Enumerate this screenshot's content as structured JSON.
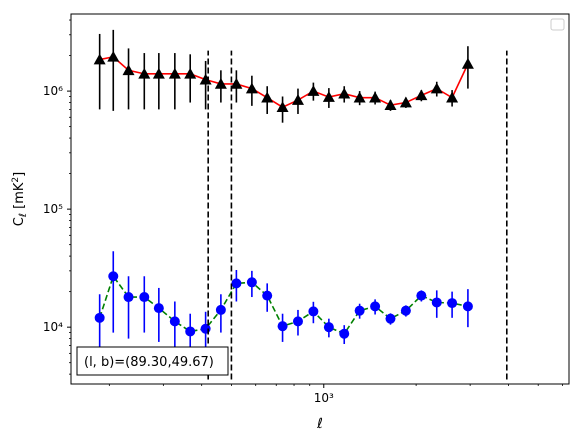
{
  "chart_data": {
    "type": "scatter",
    "xlabel": "ℓ",
    "ylabel": "C_ℓ [mK²]",
    "xscale": "log",
    "yscale": "log",
    "xlim": [
      150,
      6300
    ],
    "ylim": [
      3300,
      4500000
    ],
    "x_tick_labels": [
      {
        "value": 1000,
        "label": "10³"
      }
    ],
    "y_tick_labels": [
      {
        "value": 10000,
        "label": "10⁴"
      },
      {
        "value": 100000,
        "label": "10⁵"
      },
      {
        "value": 1000000,
        "label": "10⁶"
      }
    ],
    "legend": {
      "placement": "top-right",
      "entries": []
    },
    "annotation": "(l, b)=(89.30,49.67)",
    "vlines": [
      420,
      500,
      3950
    ],
    "vline_range": [
      3600,
      2200000
    ],
    "colors": {
      "upper_marker": "#000000",
      "upper_line": "#ff0000",
      "upper_error": "#000000",
      "lower_marker": "#0000ff",
      "lower_line": "#008000",
      "lower_error": "#0000ff",
      "vline": "#000000"
    },
    "series": [
      {
        "marker": "triangle",
        "line_style": "solid",
        "points": [
          {
            "x": 186,
            "y": 1850000,
            "lo": 700000,
            "hi": 3050000
          },
          {
            "x": 206,
            "y": 1950000,
            "lo": 680000,
            "hi": 3300000
          },
          {
            "x": 231,
            "y": 1500000,
            "lo": 700000,
            "hi": 2300000
          },
          {
            "x": 260,
            "y": 1400000,
            "lo": 700000,
            "hi": 2100000
          },
          {
            "x": 290,
            "y": 1400000,
            "lo": 700000,
            "hi": 2100000
          },
          {
            "x": 327,
            "y": 1400000,
            "lo": 700000,
            "hi": 2100000
          },
          {
            "x": 367,
            "y": 1400000,
            "lo": 800000,
            "hi": 2050000
          },
          {
            "x": 412,
            "y": 1250000,
            "lo": 700000,
            "hi": 1800000
          },
          {
            "x": 462,
            "y": 1150000,
            "lo": 800000,
            "hi": 1500000
          },
          {
            "x": 519,
            "y": 1150000,
            "lo": 800000,
            "hi": 1500000
          },
          {
            "x": 583,
            "y": 1050000,
            "lo": 750000,
            "hi": 1350000
          },
          {
            "x": 654,
            "y": 880000,
            "lo": 640000,
            "hi": 1100000
          },
          {
            "x": 734,
            "y": 730000,
            "lo": 540000,
            "hi": 900000
          },
          {
            "x": 824,
            "y": 840000,
            "lo": 640000,
            "hi": 1050000
          },
          {
            "x": 925,
            "y": 1000000,
            "lo": 830000,
            "hi": 1180000
          },
          {
            "x": 1039,
            "y": 890000,
            "lo": 720000,
            "hi": 1060000
          },
          {
            "x": 1166,
            "y": 950000,
            "lo": 800000,
            "hi": 1100000
          },
          {
            "x": 1309,
            "y": 880000,
            "lo": 760000,
            "hi": 1000000
          },
          {
            "x": 1470,
            "y": 880000,
            "lo": 770000,
            "hi": 990000
          },
          {
            "x": 1650,
            "y": 760000,
            "lo": 680000,
            "hi": 840000
          },
          {
            "x": 1852,
            "y": 800000,
            "lo": 720000,
            "hi": 880000
          },
          {
            "x": 2080,
            "y": 920000,
            "lo": 820000,
            "hi": 1020000
          },
          {
            "x": 2335,
            "y": 1050000,
            "lo": 900000,
            "hi": 1200000
          },
          {
            "x": 2620,
            "y": 880000,
            "lo": 740000,
            "hi": 1020000
          },
          {
            "x": 2950,
            "y": 1700000,
            "lo": 1050000,
            "hi": 2400000
          }
        ]
      },
      {
        "marker": "circle",
        "line_style": "dashed",
        "points": [
          {
            "x": 186,
            "y": 12000,
            "lo": 5000,
            "hi": 19000
          },
          {
            "x": 206,
            "y": 27000,
            "lo": 9000,
            "hi": 44000
          },
          {
            "x": 231,
            "y": 18000,
            "lo": 8000,
            "hi": 27000
          },
          {
            "x": 260,
            "y": 18000,
            "lo": 9000,
            "hi": 27000
          },
          {
            "x": 290,
            "y": 14500,
            "lo": 7500,
            "hi": 21500
          },
          {
            "x": 327,
            "y": 11200,
            "lo": 6000,
            "hi": 16500
          },
          {
            "x": 367,
            "y": 9200,
            "lo": 5200,
            "hi": 13000
          },
          {
            "x": 412,
            "y": 9700,
            "lo": 6000,
            "hi": 13500
          },
          {
            "x": 462,
            "y": 14000,
            "lo": 9000,
            "hi": 19000
          },
          {
            "x": 519,
            "y": 23500,
            "lo": 16500,
            "hi": 30500
          },
          {
            "x": 583,
            "y": 24000,
            "lo": 18000,
            "hi": 30000
          },
          {
            "x": 654,
            "y": 18500,
            "lo": 13500,
            "hi": 23500
          },
          {
            "x": 734,
            "y": 10200,
            "lo": 7500,
            "hi": 13000
          },
          {
            "x": 824,
            "y": 11200,
            "lo": 8500,
            "hi": 14000
          },
          {
            "x": 925,
            "y": 13600,
            "lo": 10800,
            "hi": 16400
          },
          {
            "x": 1039,
            "y": 10000,
            "lo": 8200,
            "hi": 11800
          },
          {
            "x": 1166,
            "y": 8800,
            "lo": 7200,
            "hi": 10400
          },
          {
            "x": 1309,
            "y": 13800,
            "lo": 11800,
            "hi": 15800
          },
          {
            "x": 1470,
            "y": 15000,
            "lo": 12800,
            "hi": 17200
          },
          {
            "x": 1650,
            "y": 11800,
            "lo": 10500,
            "hi": 13100
          },
          {
            "x": 1852,
            "y": 13800,
            "lo": 12300,
            "hi": 15300
          },
          {
            "x": 2080,
            "y": 18500,
            "lo": 16500,
            "hi": 20500
          },
          {
            "x": 2335,
            "y": 16200,
            "lo": 12000,
            "hi": 20500
          },
          {
            "x": 2620,
            "y": 16000,
            "lo": 12000,
            "hi": 20000
          },
          {
            "x": 2950,
            "y": 15000,
            "lo": 10000,
            "hi": 21000
          }
        ]
      }
    ]
  }
}
